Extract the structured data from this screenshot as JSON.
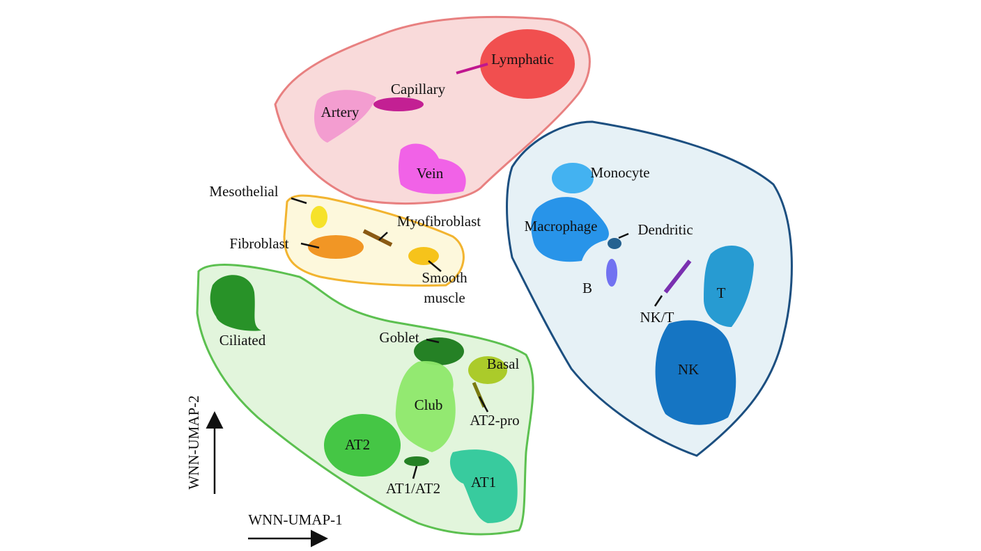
{
  "axes": {
    "x_label": "WNN-UMAP-1",
    "y_label": "WNN-UMAP-2"
  },
  "endothelial": {
    "clusters": [
      {
        "label": "Lymphatic"
      },
      {
        "label": "Capillary"
      },
      {
        "label": "Artery"
      },
      {
        "label": "Vein"
      }
    ]
  },
  "stromal": {
    "clusters": [
      {
        "label": "Mesothelial"
      },
      {
        "label": "Myofibroblast"
      },
      {
        "label": "Fibroblast"
      },
      {
        "label": [
          "Smooth",
          "muscle"
        ]
      }
    ]
  },
  "epithelial": {
    "clusters": [
      {
        "label": "Ciliated"
      },
      {
        "label": "Goblet"
      },
      {
        "label": "Basal"
      },
      {
        "label": "Club"
      },
      {
        "label": "AT2-pro"
      },
      {
        "label": "AT2"
      },
      {
        "label": "AT1/AT2"
      },
      {
        "label": "AT1"
      }
    ]
  },
  "immune": {
    "clusters": [
      {
        "label": "Monocyte"
      },
      {
        "label": "Macrophage"
      },
      {
        "label": "Dendritic"
      },
      {
        "label": "B"
      },
      {
        "label": "NK/T"
      },
      {
        "label": "T"
      },
      {
        "label": "NK"
      }
    ]
  }
}
